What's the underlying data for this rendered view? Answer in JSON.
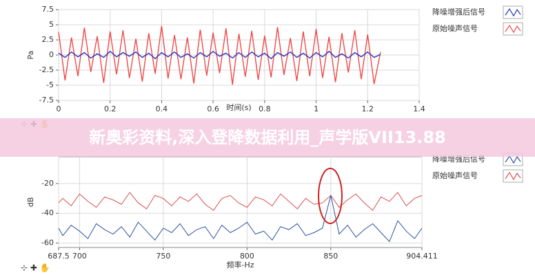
{
  "banner": "新奥彩资料,深入登降数据利用_声学版VII13.88",
  "chart_data": [
    {
      "type": "line",
      "x_label": "时间(s)",
      "y_label": "Pa",
      "xlim": [
        0,
        1.4
      ],
      "xticks": [
        0,
        0.2,
        0.4,
        0.6,
        0.8,
        1,
        1.2,
        1.4
      ],
      "ylim": [
        -7.5,
        7.5
      ],
      "yticks": [
        -7.5,
        -5,
        -2.5,
        0,
        2.5,
        5,
        7.5
      ],
      "grid": true,
      "x": [
        0,
        0.025,
        0.05,
        0.075,
        0.1,
        0.125,
        0.15,
        0.175,
        0.2,
        0.225,
        0.25,
        0.275,
        0.3,
        0.325,
        0.35,
        0.375,
        0.4,
        0.425,
        0.45,
        0.475,
        0.5,
        0.525,
        0.55,
        0.575,
        0.6,
        0.625,
        0.65,
        0.675,
        0.7,
        0.725,
        0.75,
        0.775,
        0.8,
        0.825,
        0.85,
        0.875,
        0.9,
        0.925,
        0.95,
        0.975,
        1,
        1.025,
        1.05,
        1.075,
        1.1,
        1.125,
        1.15,
        1.175,
        1.2,
        1.225,
        1.25
      ],
      "series": [
        {
          "name": "原始噪声信号",
          "color": "#f04848",
          "values": [
            3.8,
            -4.2,
            2.9,
            -3.5,
            4.5,
            -2.8,
            3.1,
            -4.6,
            3.9,
            -3.2,
            4.1,
            -3.8,
            2.7,
            -4.4,
            3.6,
            -3.1,
            4.8,
            -3.9,
            3.3,
            -4.0,
            2.9,
            -4.7,
            4.2,
            -3.4,
            3.7,
            -3.0,
            4.4,
            -4.9,
            3.5,
            -3.6,
            4.0,
            -4.1,
            3.2,
            -3.7,
            4.6,
            -3.3,
            2.8,
            -4.3,
            3.9,
            -3.5,
            4.3,
            -3.8,
            3.0,
            -4.5,
            3.6,
            -2.9,
            4.1,
            -4.0,
            3.4,
            -4.8,
            0.5
          ]
        },
        {
          "name": "降噪增强后信号",
          "color": "#2233bb",
          "values": [
            0.3,
            -0.4,
            0.5,
            -0.3,
            0.4,
            -0.5,
            0.2,
            -0.4,
            0.6,
            -0.3,
            0.4,
            -0.2,
            0.5,
            -0.4,
            0.3,
            -0.6,
            0.4,
            -0.3,
            0.5,
            -0.4,
            0.2,
            -0.5,
            0.4,
            -0.3,
            0.6,
            -0.2,
            0.3,
            -0.5,
            0.4,
            -0.4,
            0.5,
            -0.3,
            0.3,
            -0.6,
            0.4,
            -0.2,
            0.5,
            -0.4,
            0.3,
            -0.5,
            0.4,
            -0.3,
            0.6,
            -0.4,
            0.2,
            -0.5,
            0.4,
            -0.3,
            0.5,
            -0.4,
            0.1
          ]
        }
      ],
      "legend": [
        "降噪增强后信号",
        "原始噪声信号"
      ]
    },
    {
      "type": "line",
      "x_label": "频率-Hz",
      "y_label": "dB",
      "xlim": [
        687.5,
        904.411
      ],
      "xticks": [
        687.5,
        700,
        750,
        800,
        850,
        904.411
      ],
      "ylim": [
        -63,
        -2
      ],
      "yticks": [
        -60,
        -40,
        -20
      ],
      "grid": true,
      "x": [
        687.5,
        690,
        695,
        700,
        705,
        710,
        715,
        720,
        725,
        730,
        735,
        740,
        745,
        750,
        755,
        760,
        765,
        770,
        775,
        780,
        785,
        790,
        795,
        800,
        805,
        810,
        815,
        820,
        825,
        830,
        835,
        840,
        845,
        850,
        855,
        860,
        865,
        870,
        875,
        880,
        885,
        890,
        895,
        900,
        904.411
      ],
      "series": [
        {
          "name": "原始噪声信号",
          "color": "#d85050",
          "values": [
            -33,
            -30,
            -35,
            -27,
            -32,
            -36,
            -29,
            -31,
            -34,
            -26,
            -33,
            -37,
            -28,
            -30,
            -35,
            -29,
            -32,
            -27,
            -34,
            -38,
            -30,
            -28,
            -33,
            -36,
            -29,
            -31,
            -35,
            -27,
            -32,
            -37,
            -30,
            -34,
            -33,
            -28,
            -36,
            -31,
            -27,
            -33,
            -38,
            -29,
            -32,
            -26,
            -35,
            -30,
            -28
          ]
        },
        {
          "name": "降噪增强后信号",
          "color": "#2a50a0",
          "values": [
            -50,
            -55,
            -48,
            -52,
            -57,
            -47,
            -51,
            -54,
            -49,
            -56,
            -46,
            -52,
            -58,
            -50,
            -53,
            -47,
            -55,
            -51,
            -49,
            -57,
            -48,
            -53,
            -50,
            -46,
            -54,
            -52,
            -58,
            -49,
            -51,
            -47,
            -55,
            -53,
            -50,
            -28,
            -54,
            -48,
            -56,
            -51,
            -47,
            -53,
            -59,
            -45,
            -52,
            -57,
            -50
          ]
        }
      ],
      "legend": [
        "降噪增强后信号",
        "原始噪声信号"
      ]
    }
  ]
}
